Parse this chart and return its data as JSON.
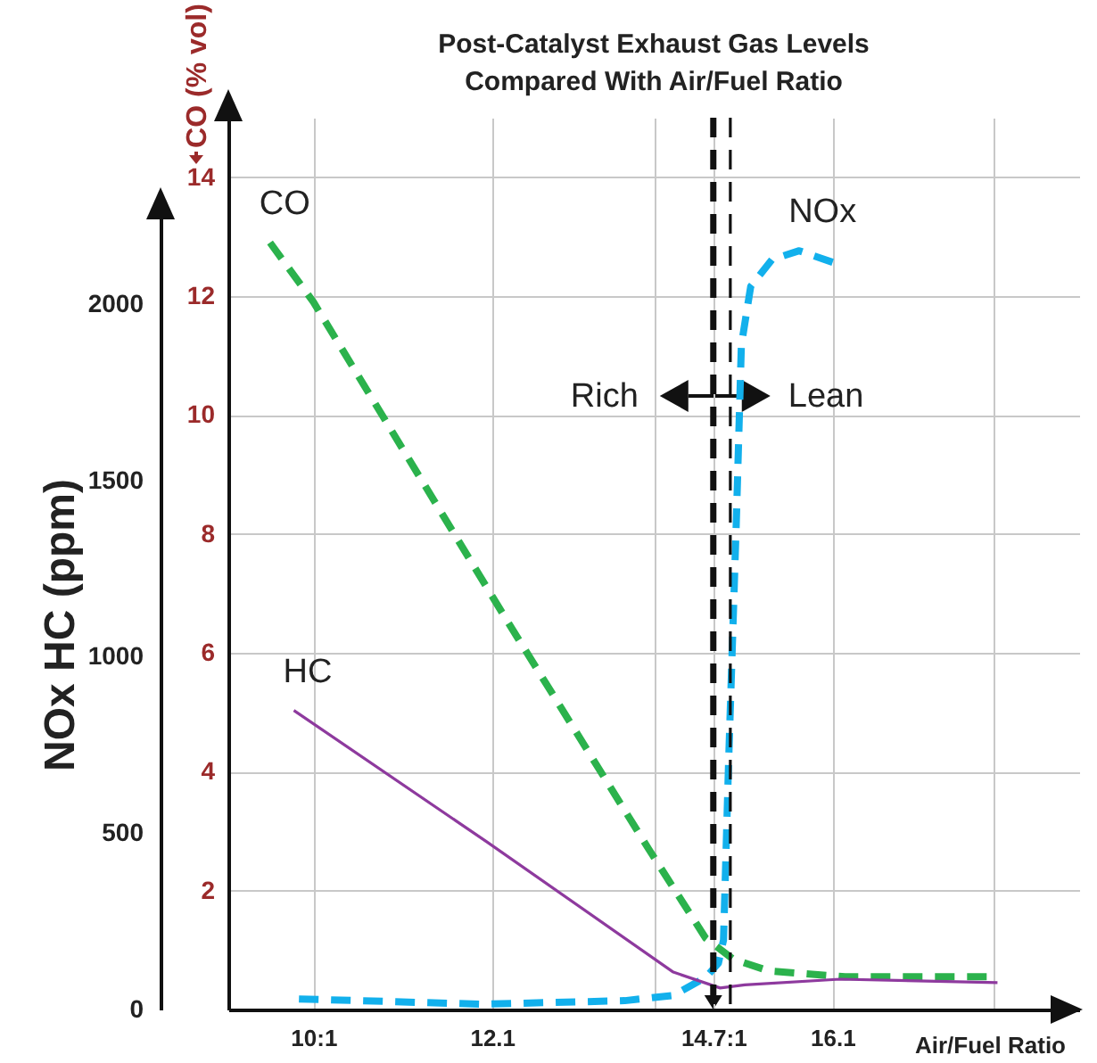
{
  "chart_data": {
    "type": "line",
    "title": "Post-Catalyst Exhaust Gas Levels\nCompared With Air/Fuel Ratio",
    "xlabel": "Air/Fuel Ratio",
    "ylabel": "CO (% vol)",
    "y2label": "NOx HC (ppm)",
    "xlim": [
      9,
      19
    ],
    "xticks": [
      {
        "value": 10,
        "label": "10:1"
      },
      12.1,
      {
        "value": 14,
        "label": null
      },
      {
        "value": 14.7,
        "label": "14.7:1"
      },
      16.1,
      {
        "value": 18,
        "label": null
      }
    ],
    "ylim": [
      0,
      15
    ],
    "yticks": [
      2,
      4,
      6,
      8,
      10,
      12,
      14
    ],
    "y2lim": [
      0,
      2250
    ],
    "y2ticks": [
      0,
      500,
      1000,
      1500,
      2000
    ],
    "grid": true,
    "series": [
      {
        "name": "CO",
        "color": "#2bb24c",
        "line_style": "dashed",
        "x": [
          9.49,
          10,
          12.25,
          13.94,
          14.61,
          14.93,
          15.35,
          16.25,
          17.94
        ],
        "values": [
          12.9,
          11.9,
          6.6,
          2.7,
          1.2,
          0.85,
          0.65,
          0.55,
          0.55
        ]
      },
      {
        "name": "NOx",
        "axis": "y2",
        "color": "#12b0ec",
        "line_style": "dashed",
        "x": [
          9.83,
          11.98,
          13.66,
          14.23,
          14.61,
          14.76,
          14.82,
          14.88,
          14.97,
          15.03,
          15.14,
          15.39,
          15.71,
          16.19
        ],
        "values": [
          30,
          15,
          25,
          40,
          91,
          131,
          197,
          702,
          1379,
          1884,
          2050,
          2126,
          2151,
          2111
        ]
      },
      {
        "name": "HC",
        "axis": "y2",
        "color": "#8e3a9e",
        "line_style": "solid",
        "x": [
          9.77,
          12.04,
          14.23,
          14.78,
          15.07,
          16.19,
          18.04
        ],
        "values": [
          848,
          475,
          106,
          61,
          70,
          86,
          76
        ]
      }
    ],
    "ref_lines": [
      {
        "axis": "x",
        "value": 14.7,
        "color": "#111111",
        "line_style": "dashed"
      },
      {
        "axis": "x",
        "value": 14.9,
        "color": "#111111",
        "line_style": "dashed"
      }
    ],
    "annotations": [
      "Rich",
      "Lean"
    ]
  }
}
